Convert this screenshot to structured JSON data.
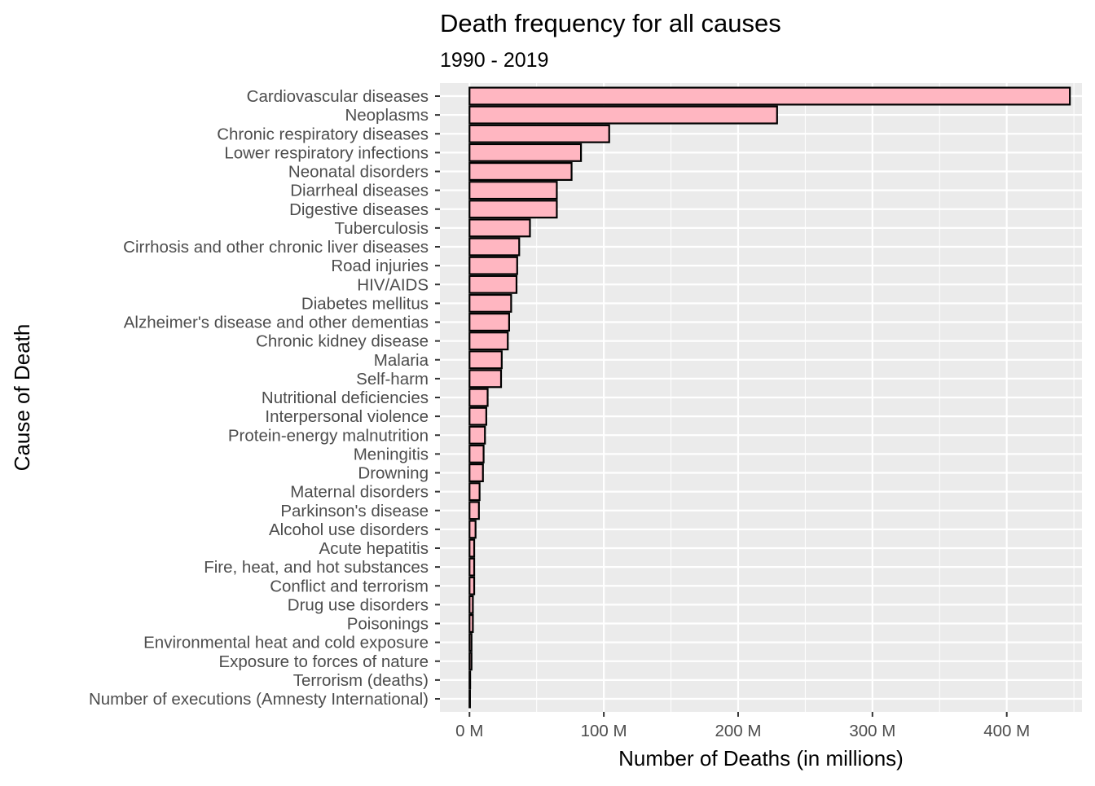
{
  "chart_data": {
    "type": "bar",
    "orientation": "horizontal",
    "title": "Death frequency for all causes",
    "subtitle": "1990 - 2019",
    "xlabel": "Number of Deaths (in millions)",
    "ylabel": "Cause of Death",
    "xlim": [
      -22,
      456
    ],
    "x_ticks": [
      0,
      100,
      200,
      300,
      400
    ],
    "x_tick_labels": [
      "0 M",
      "100 M",
      "200 M",
      "300 M",
      "400 M"
    ],
    "grid": true,
    "legend": "none",
    "categories": [
      "Cardiovascular diseases",
      "Neoplasms",
      "Chronic respiratory diseases",
      "Lower respiratory infections",
      "Neonatal disorders",
      "Diarrheal diseases",
      "Digestive diseases",
      "Tuberculosis",
      "Cirrhosis and other chronic liver diseases",
      "Road injuries",
      "HIV/AIDS",
      "Diabetes mellitus",
      "Alzheimer's disease and other dementias",
      "Chronic kidney disease",
      "Malaria",
      "Self-harm",
      "Nutritional deficiencies",
      "Interpersonal violence",
      "Protein-energy malnutrition",
      "Meningitis",
      "Drowning",
      "Maternal disorders",
      "Parkinson's disease",
      "Alcohol use disorders",
      "Acute hepatitis",
      "Fire, heat, and hot substances",
      "Conflict and terrorism",
      "Drug use disorders",
      "Poisonings",
      "Environmental heat and cold exposure",
      "Exposure to forces of nature",
      "Terrorism (deaths)",
      "Number of executions (Amnesty International)"
    ],
    "values": [
      447,
      229,
      104,
      83,
      76,
      65,
      65,
      45,
      37,
      35.5,
      35,
      31,
      29.5,
      28.5,
      24,
      23.5,
      13.5,
      12.5,
      11.5,
      10.5,
      10,
      7.5,
      7,
      4.5,
      3.5,
      3.5,
      3.5,
      2.5,
      2.5,
      1.5,
      1.5,
      0.5,
      0.02
    ],
    "colors": {
      "bar_fill": "#FFB6C1",
      "bar_stroke": "#000000",
      "panel_bg": "#EBEBEB",
      "grid": "#FFFFFF",
      "text": "#000000",
      "tick_text": "#4D4D4D",
      "tick_mark": "#333333"
    }
  }
}
